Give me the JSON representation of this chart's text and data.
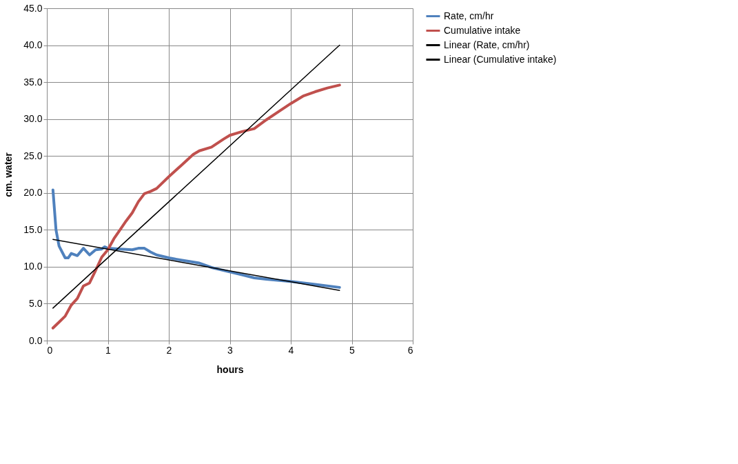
{
  "chart_data": {
    "type": "line",
    "xlabel": "hours",
    "ylabel": "cm. water",
    "xlim": [
      0,
      6
    ],
    "xticks": [
      0,
      1,
      2,
      3,
      4,
      5,
      6
    ],
    "ylim": [
      0,
      45
    ],
    "yticks": [
      {
        "value": 0,
        "label": "0.0"
      },
      {
        "value": 5,
        "label": "5.0"
      },
      {
        "value": 10,
        "label": "10.0"
      },
      {
        "value": 15,
        "label": "15.0"
      },
      {
        "value": 20,
        "label": "20.0"
      },
      {
        "value": 25,
        "label": "25.0"
      },
      {
        "value": 30,
        "label": "30.0"
      },
      {
        "value": 35,
        "label": "35.0"
      },
      {
        "value": 40,
        "label": "40.0"
      },
      {
        "value": 45,
        "label": "45.0"
      }
    ],
    "grid": true,
    "legend": "right",
    "marker": "none",
    "series": [
      {
        "name": "Rate, cm/hr",
        "color": "#4f81bd",
        "x": [
          0.1,
          0.15,
          0.2,
          0.3,
          0.35,
          0.4,
          0.5,
          0.6,
          0.7,
          0.8,
          0.9,
          0.95,
          1.0,
          1.2,
          1.4,
          1.5,
          1.6,
          1.7,
          1.8,
          2.0,
          2.2,
          2.5,
          2.7,
          3.0,
          3.2,
          3.4,
          3.6,
          4.0,
          4.4,
          4.8
        ],
        "values": [
          20.4,
          15.0,
          12.8,
          11.2,
          11.2,
          11.8,
          11.5,
          12.5,
          11.6,
          12.3,
          12.4,
          12.7,
          12.5,
          12.4,
          12.3,
          12.5,
          12.5,
          12.0,
          11.6,
          11.2,
          10.9,
          10.5,
          9.9,
          9.3,
          8.9,
          8.5,
          8.3,
          8.0,
          7.6,
          7.2
        ]
      },
      {
        "name": "Cumulative intake",
        "color": "#c0504d",
        "x": [
          0.1,
          0.2,
          0.3,
          0.4,
          0.5,
          0.6,
          0.7,
          0.8,
          0.9,
          1.0,
          1.1,
          1.2,
          1.3,
          1.4,
          1.5,
          1.6,
          1.7,
          1.8,
          2.0,
          2.2,
          2.4,
          2.5,
          2.7,
          2.9,
          3.0,
          3.2,
          3.4,
          3.6,
          3.8,
          4.0,
          4.2,
          4.4,
          4.6,
          4.8
        ],
        "values": [
          1.7,
          2.5,
          3.3,
          4.8,
          5.7,
          7.4,
          7.8,
          9.5,
          11.3,
          12.3,
          13.8,
          15.0,
          16.2,
          17.3,
          18.8,
          19.9,
          20.2,
          20.6,
          22.2,
          23.7,
          25.2,
          25.7,
          26.2,
          27.3,
          27.8,
          28.3,
          28.7,
          29.9,
          31.0,
          32.1,
          33.1,
          33.7,
          34.2,
          34.6
        ]
      },
      {
        "name": "Linear (Rate, cm/hr)",
        "color": "#000000",
        "x": [
          0.1,
          4.8
        ],
        "values": [
          13.7,
          6.8
        ]
      },
      {
        "name": "Linear (Cumulative intake)",
        "color": "#000000",
        "x": [
          0.1,
          4.8
        ],
        "values": [
          4.4,
          40.0
        ]
      }
    ]
  }
}
